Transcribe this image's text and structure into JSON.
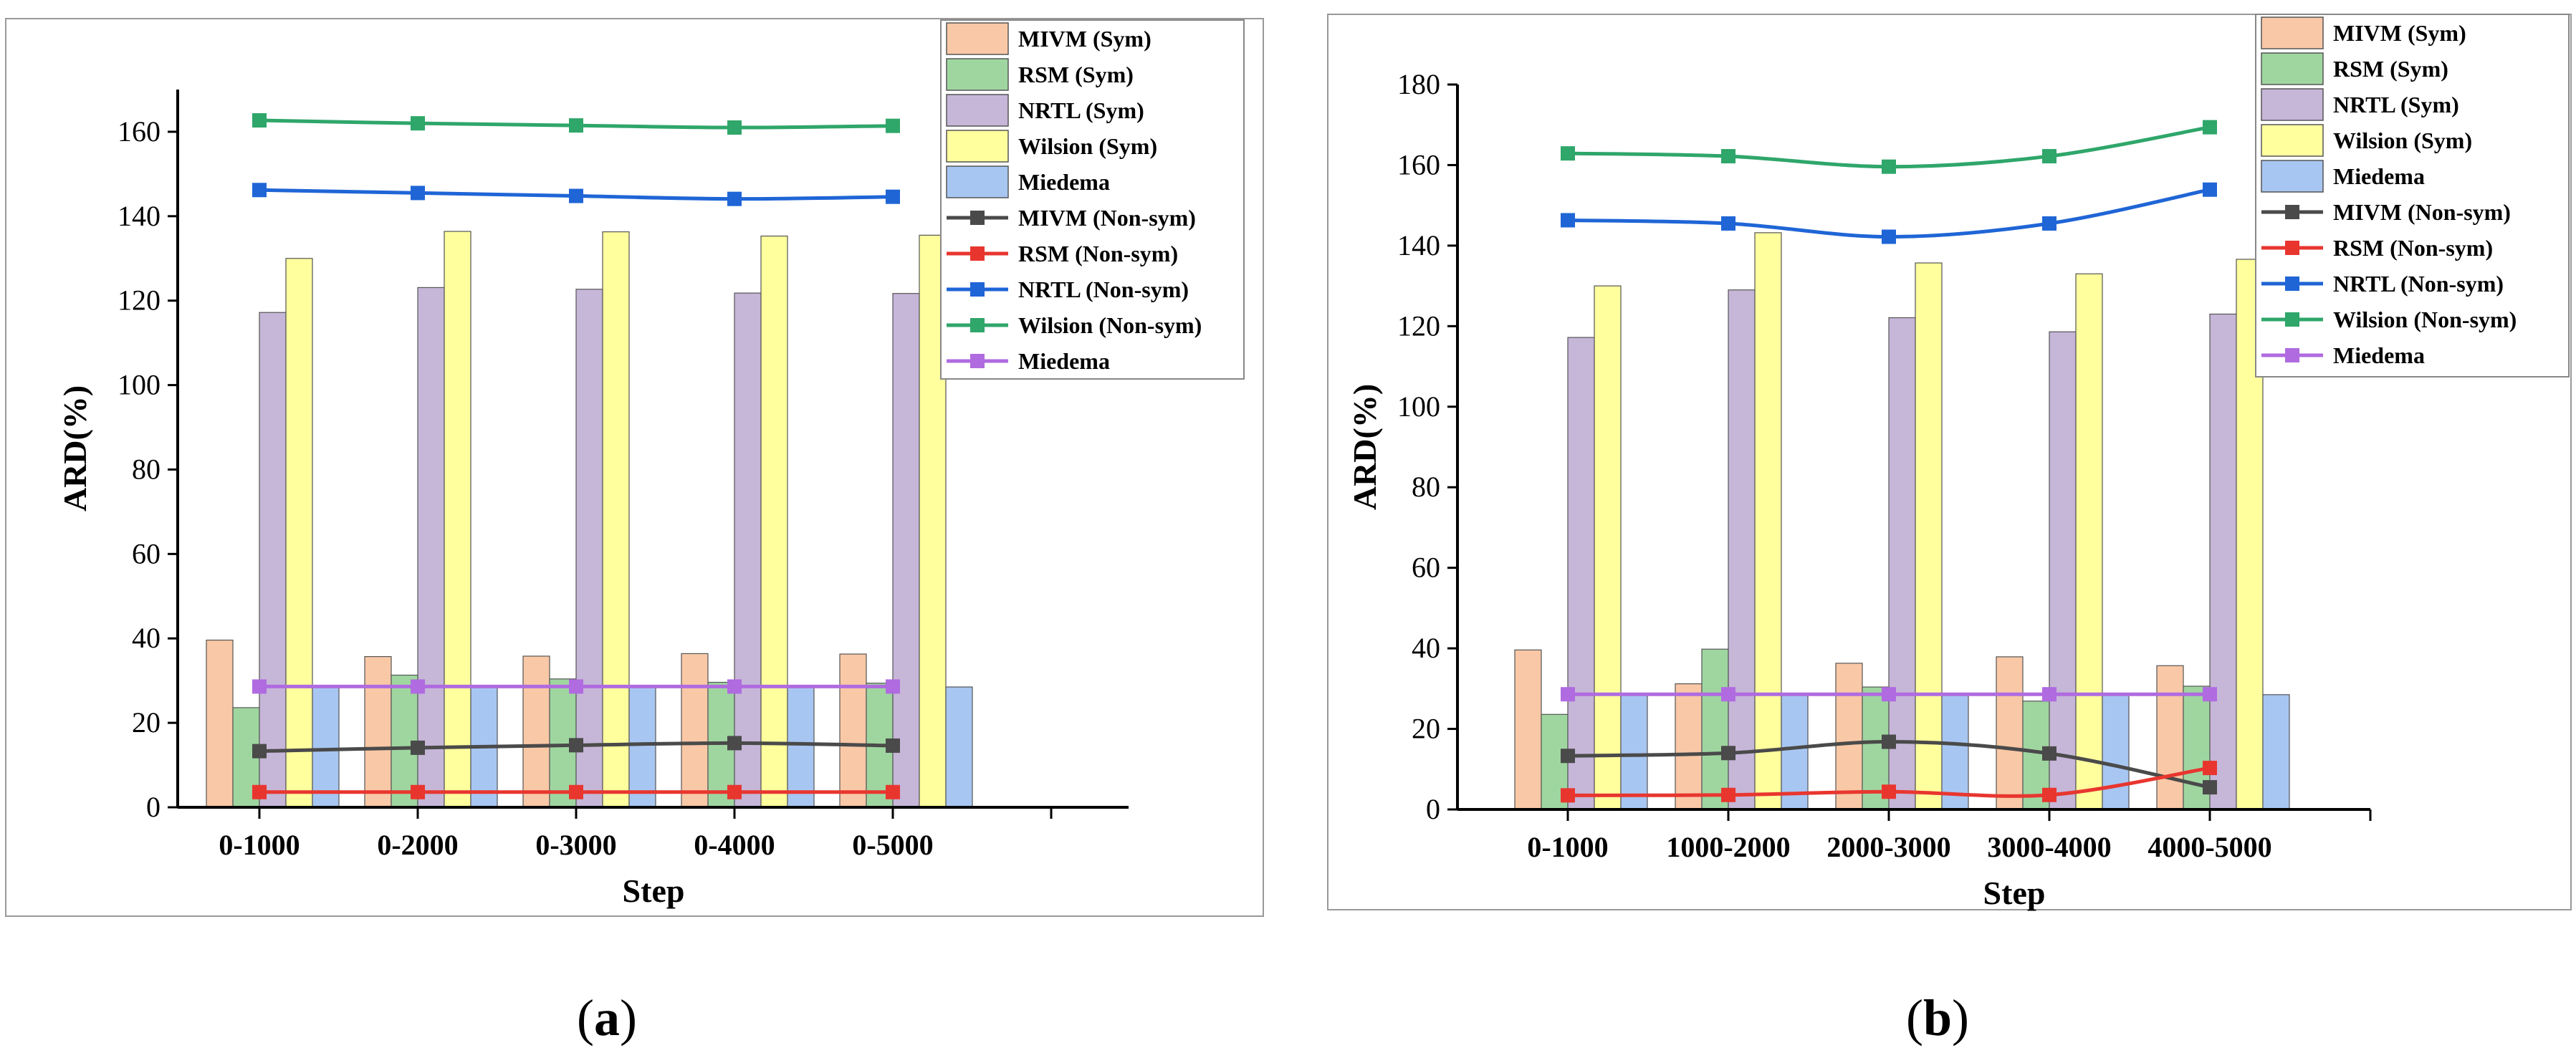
{
  "captions": {
    "a_open": "(",
    "a_letter": "a",
    "a_close": ")",
    "b_open": "(",
    "b_letter": "b",
    "b_close": ")"
  },
  "colors": {
    "mivm_sym": "#f9c8a6",
    "rsm_sym": "#9fd6a0",
    "nrtl_sym": "#c6b6d8",
    "wilson_sym": "#ffff9e",
    "miedema_bar": "#a8c6f2",
    "mivm_line": "#4a4a4a",
    "rsm_line": "#e8362f",
    "nrtl_line": "#1f65d6",
    "wilson_line": "#2fa66a",
    "miedema_line": "#b06be0"
  },
  "chart_data": [
    {
      "panel": "a",
      "type": "bar",
      "title": "",
      "xlabel": "Step",
      "ylabel": "ARD(%)",
      "ylim": [
        0,
        170
      ],
      "yticks": [
        "0",
        "20",
        "40",
        "60",
        "80",
        "100",
        "120",
        "140",
        "160"
      ],
      "categories": [
        "0-1000",
        "0-2000",
        "0-3000",
        "0-4000",
        "0-5000"
      ],
      "bar_series": [
        {
          "name": "MIVM (Sym)",
          "values": [
            39.6,
            35.7,
            35.8,
            36.4,
            36.3
          ]
        },
        {
          "name": "RSM (Sym)",
          "values": [
            23.6,
            31.3,
            30.4,
            29.6,
            29.4
          ]
        },
        {
          "name": "NRTL (Sym)",
          "values": [
            117.2,
            123.1,
            122.7,
            121.8,
            121.7
          ]
        },
        {
          "name": "Wilsion (Sym)",
          "values": [
            130.0,
            136.4,
            136.3,
            135.3,
            135.5
          ]
        },
        {
          "name": "Miedema",
          "values": [
            28.5,
            28.5,
            28.5,
            28.5,
            28.5
          ]
        }
      ],
      "line_series": [
        {
          "name": "MIVM (Non-sym)",
          "values": [
            13.3,
            14.1,
            14.7,
            15.2,
            14.6
          ]
        },
        {
          "name": "RSM (Non-sym)",
          "values": [
            3.6,
            3.6,
            3.6,
            3.6,
            3.6
          ]
        },
        {
          "name": "NRTL (Non-sym)",
          "values": [
            146.2,
            145.5,
            144.8,
            144.1,
            144.6
          ]
        },
        {
          "name": "Wilsion (Non-sym)",
          "values": [
            162.7,
            162.0,
            161.5,
            161.0,
            161.4
          ]
        },
        {
          "name": "Miedema",
          "values": [
            28.6,
            28.6,
            28.6,
            28.6,
            28.6
          ]
        }
      ],
      "legend": "top-right"
    },
    {
      "panel": "b",
      "type": "bar",
      "title": "",
      "xlabel": "Step",
      "ylabel": "ARD(%)",
      "ylim": [
        0,
        180
      ],
      "yticks": [
        "0",
        "20",
        "40",
        "60",
        "80",
        "100",
        "120",
        "140",
        "160",
        "180"
      ],
      "categories": [
        "0-1000",
        "1000-2000",
        "2000-3000",
        "3000-4000",
        "4000-5000"
      ],
      "bar_series": [
        {
          "name": "MIVM (Sym)",
          "values": [
            39.6,
            31.2,
            36.3,
            37.9,
            35.7
          ]
        },
        {
          "name": "RSM (Sym)",
          "values": [
            23.6,
            39.8,
            30.4,
            26.9,
            30.6
          ]
        },
        {
          "name": "NRTL (Sym)",
          "values": [
            117.2,
            129.0,
            122.1,
            118.6,
            123.0
          ]
        },
        {
          "name": "Wilsion (Sym)",
          "values": [
            130.0,
            143.2,
            135.7,
            133.0,
            136.6
          ]
        },
        {
          "name": "Miedema",
          "values": [
            28.5,
            28.5,
            28.5,
            28.5,
            28.5
          ]
        }
      ],
      "line_series": [
        {
          "name": "MIVM (Non-sym)",
          "values": [
            13.3,
            14.0,
            16.8,
            13.9,
            5.5
          ]
        },
        {
          "name": "RSM (Non-sym)",
          "values": [
            3.5,
            3.6,
            4.4,
            3.6,
            10.3
          ]
        },
        {
          "name": "NRTL (Non-sym)",
          "values": [
            146.3,
            145.5,
            142.2,
            145.5,
            153.9
          ]
        },
        {
          "name": "Wilsion (Non-sym)",
          "values": [
            162.9,
            162.2,
            159.6,
            162.2,
            169.4
          ]
        },
        {
          "name": "Miedema",
          "values": [
            28.6,
            28.6,
            28.6,
            28.6,
            28.6
          ]
        }
      ],
      "legend": "top-right"
    }
  ]
}
